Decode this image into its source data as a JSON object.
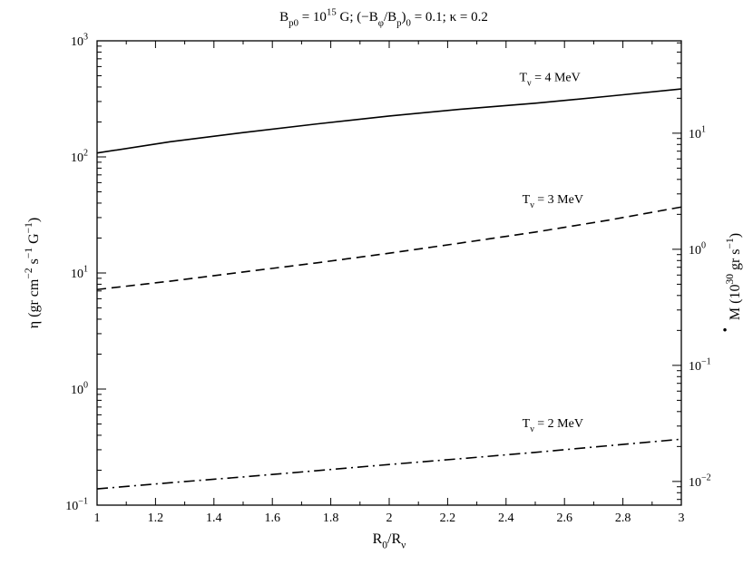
{
  "chart_data": {
    "type": "line",
    "title": {
      "parts": [
        {
          "t": "B"
        },
        {
          "t": "p0",
          "sub": true
        },
        {
          "t": " = 10"
        },
        {
          "t": "15",
          "sup": true
        },
        {
          "t": " G;  (−B"
        },
        {
          "t": "φ",
          "sub": true
        },
        {
          "t": "/B"
        },
        {
          "t": "p",
          "sub": true
        },
        {
          "t": ")"
        },
        {
          "t": "0",
          "sub": true
        },
        {
          "t": " = 0.1;  κ = 0.2"
        }
      ]
    },
    "xlabel": {
      "parts": [
        {
          "t": "R"
        },
        {
          "t": "0",
          "sub": true
        },
        {
          "t": "/R"
        },
        {
          "t": "ν",
          "sub": true
        }
      ]
    },
    "ylabel_left": {
      "parts": [
        {
          "t": "η (gr cm"
        },
        {
          "t": "−2",
          "sup": true
        },
        {
          "t": " s"
        },
        {
          "t": "−1",
          "sup": true
        },
        {
          "t": " G"
        },
        {
          "t": "−1",
          "sup": true
        },
        {
          "t": ")"
        }
      ]
    },
    "ylabel_right": {
      "dot_symbol": "·",
      "parts": [
        {
          "t": "M (10"
        },
        {
          "t": "30",
          "sup": true
        },
        {
          "t": " gr s"
        },
        {
          "t": "−1",
          "sup": true
        },
        {
          "t": ")"
        }
      ]
    },
    "xlim": [
      1,
      3
    ],
    "ylim_left": [
      0.1,
      1000
    ],
    "ylim_right": [
      0.00625,
      62.5
    ],
    "yscale": "log",
    "grid": false,
    "x_ticks": [
      {
        "v": 1,
        "label": "1"
      },
      {
        "v": 1.2,
        "label": "1.2"
      },
      {
        "v": 1.4,
        "label": "1.4"
      },
      {
        "v": 1.6,
        "label": "1.6"
      },
      {
        "v": 1.8,
        "label": "1.8"
      },
      {
        "v": 2,
        "label": "2"
      },
      {
        "v": 2.2,
        "label": "2.2"
      },
      {
        "v": 2.4,
        "label": "2.4"
      },
      {
        "v": 2.6,
        "label": "2.6"
      },
      {
        "v": 2.8,
        "label": "2.8"
      },
      {
        "v": 3,
        "label": "3"
      }
    ],
    "y_ticks_left": [
      {
        "v": 0.1,
        "base": "10",
        "exp": "−1"
      },
      {
        "v": 1,
        "base": "10",
        "exp": "0"
      },
      {
        "v": 10,
        "base": "10",
        "exp": "1"
      },
      {
        "v": 100,
        "base": "10",
        "exp": "2"
      },
      {
        "v": 1000,
        "base": "10",
        "exp": "3"
      }
    ],
    "y_ticks_right": [
      {
        "v": 0.01,
        "base": "10",
        "exp": "−2"
      },
      {
        "v": 0.1,
        "base": "10",
        "exp": "−1"
      },
      {
        "v": 1,
        "base": "10",
        "exp": "0"
      },
      {
        "v": 10,
        "base": "10",
        "exp": "1"
      }
    ],
    "series": [
      {
        "name": "T_ν = 4 MeV",
        "label_parts": [
          {
            "t": "T"
          },
          {
            "t": "ν",
            "sub": true
          },
          {
            "t": " = 4 MeV"
          }
        ],
        "label_at": {
          "x": 2.55,
          "y": 450
        },
        "style": "solid",
        "x": [
          1.0,
          1.25,
          1.5,
          1.75,
          2.0,
          2.25,
          2.5,
          2.75,
          3.0
        ],
        "y": [
          108,
          135,
          162,
          192,
          225,
          258,
          290,
          333,
          385
        ]
      },
      {
        "name": "T_ν = 3 MeV",
        "label_parts": [
          {
            "t": "T"
          },
          {
            "t": "ν",
            "sub": true
          },
          {
            "t": " = 3 MeV"
          }
        ],
        "label_at": {
          "x": 2.56,
          "y": 40
        },
        "style": "dashed",
        "x": [
          1.0,
          1.25,
          1.5,
          1.75,
          2.0,
          2.25,
          2.5,
          2.75,
          3.0
        ],
        "y": [
          7.2,
          8.5,
          10.2,
          12.2,
          14.8,
          18.2,
          22.5,
          28.5,
          37
        ]
      },
      {
        "name": "T_ν = 2 MeV",
        "label_parts": [
          {
            "t": "T"
          },
          {
            "t": "ν",
            "sub": true
          },
          {
            "t": " = 2 MeV"
          }
        ],
        "label_at": {
          "x": 2.56,
          "y": 0.47
        },
        "style": "dashdot",
        "x": [
          1.0,
          1.25,
          1.5,
          1.75,
          2.0,
          2.25,
          2.5,
          2.75,
          3.0
        ],
        "y": [
          0.138,
          0.156,
          0.175,
          0.198,
          0.224,
          0.252,
          0.285,
          0.325,
          0.37
        ]
      }
    ]
  }
}
